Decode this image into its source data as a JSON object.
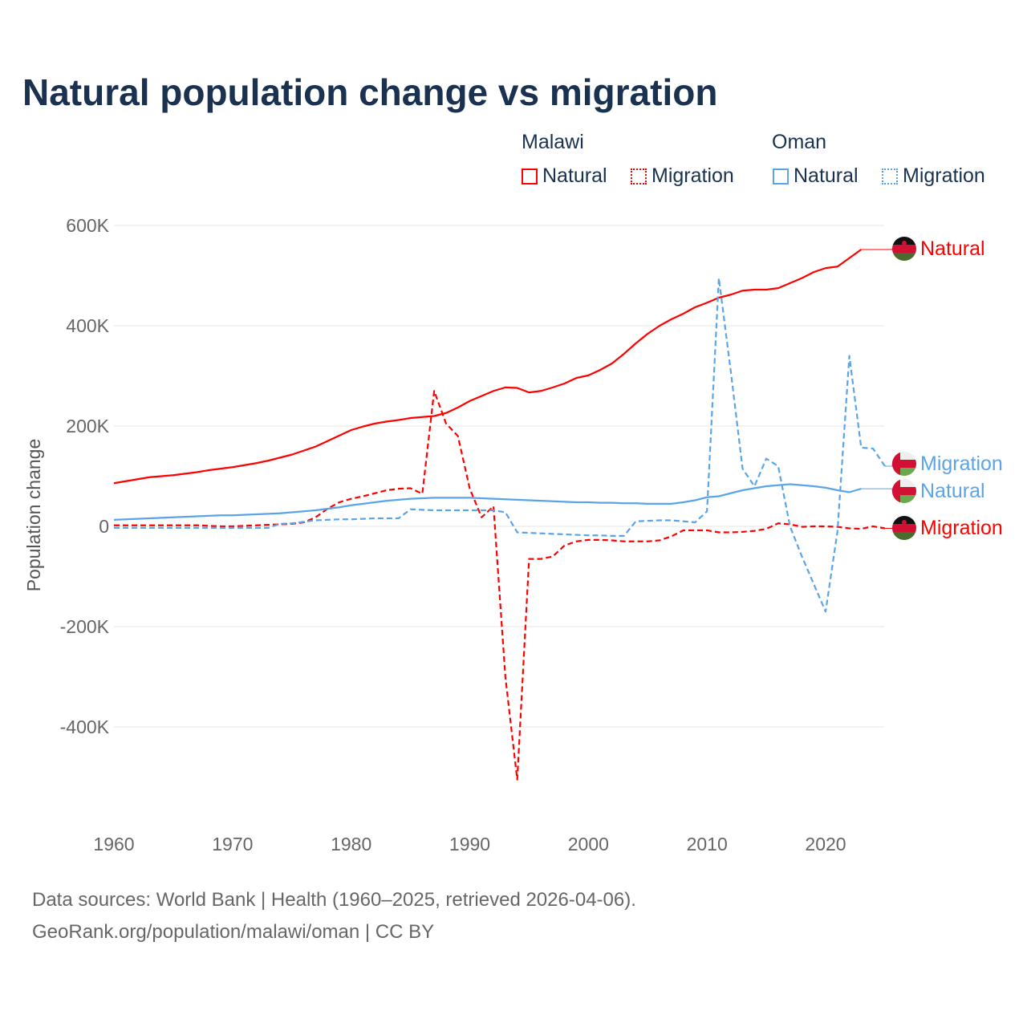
{
  "chart_data": {
    "type": "line",
    "title": "Natural population change vs migration",
    "ylabel": "Population change",
    "xlabel": "",
    "xlim": [
      1960,
      2025
    ],
    "ylim": [
      -500000,
      600000
    ],
    "x_ticks": [
      1960,
      1970,
      1980,
      1990,
      2000,
      2010,
      2020
    ],
    "x_tick_labels": [
      "1960",
      "1970",
      "1980",
      "1990",
      "2000",
      "2010",
      "2020"
    ],
    "y_ticks": [
      600000,
      400000,
      200000,
      0,
      -200000,
      -400000
    ],
    "y_tick_labels": [
      "600K",
      "400K",
      "200K",
      "0",
      "-200K",
      "-400K"
    ],
    "grid": true,
    "legend": {
      "placement": "top-right",
      "groups": [
        {
          "country": "Malawi",
          "items": [
            "Natural",
            "Migration"
          ]
        },
        {
          "country": "Oman",
          "items": [
            "Natural",
            "Migration"
          ]
        }
      ]
    },
    "colors": {
      "Malawi": "#ff0000",
      "Oman": "#5ba4e8"
    },
    "series": [
      {
        "name": "Malawi Natural",
        "country": "Malawi",
        "kind": "Natural",
        "end_label": "Natural",
        "dashed": false,
        "start": 1960,
        "values": [
          86,
          90,
          94,
          98,
          100,
          102,
          105,
          108,
          112,
          115,
          118,
          122,
          126,
          131,
          137,
          143,
          151,
          159,
          170,
          181,
          192,
          199,
          205,
          209,
          212,
          216,
          218,
          220,
          226,
          237,
          250,
          260,
          270,
          277,
          276,
          267,
          270,
          277,
          285,
          296,
          301,
          312,
          325,
          344,
          365,
          384,
          400,
          413,
          424,
          437,
          446,
          456,
          462,
          470,
          472,
          472,
          475,
          485,
          495,
          507,
          515,
          518,
          535,
          552
        ]
      },
      {
        "name": "Malawi Migration",
        "country": "Malawi",
        "kind": "Migration",
        "end_label": "Migration",
        "dashed": true,
        "start": 1960,
        "values": [
          2,
          2,
          2,
          2,
          2,
          2,
          2,
          2,
          1,
          0,
          0,
          1,
          2,
          3,
          4,
          5,
          8,
          18,
          35,
          48,
          55,
          60,
          66,
          72,
          75,
          76,
          65,
          270,
          205,
          180,
          75,
          18,
          40,
          -300,
          -505,
          -65,
          -65,
          -60,
          -38,
          -30,
          -27,
          -27,
          -28,
          -30,
          -30,
          -30,
          -28,
          -20,
          -8,
          -8,
          -8,
          -12,
          -12,
          -11,
          -9,
          -5,
          6,
          4,
          -1,
          0,
          0,
          -1,
          -4,
          -5,
          0,
          -4
        ]
      },
      {
        "name": "Oman Natural",
        "country": "Oman",
        "kind": "Natural",
        "end_label": "Natural",
        "dashed": false,
        "start": 1960,
        "values": [
          13,
          14,
          15,
          16,
          17,
          18,
          19,
          20,
          21,
          22,
          22,
          23,
          24,
          25,
          26,
          28,
          30,
          32,
          35,
          38,
          42,
          45,
          48,
          51,
          53,
          55,
          56,
          57,
          57,
          57,
          57,
          56,
          55,
          54,
          53,
          52,
          51,
          50,
          49,
          48,
          48,
          47,
          47,
          46,
          46,
          45,
          45,
          45,
          48,
          52,
          58,
          60,
          66,
          72,
          76,
          80,
          82,
          84,
          82,
          80,
          77,
          72,
          68,
          75
        ]
      },
      {
        "name": "Oman Migration",
        "country": "Oman",
        "kind": "Migration",
        "end_label": "Migration",
        "dashed": true,
        "start": 1960,
        "values": [
          -3,
          -3,
          -3,
          -3,
          -3,
          -3,
          -3,
          -3,
          -3,
          -3,
          -3,
          -3,
          -3,
          -3,
          5,
          6,
          9,
          12,
          13,
          14,
          14,
          15,
          16,
          16,
          16,
          34,
          33,
          32,
          32,
          32,
          32,
          32,
          32,
          28,
          -12,
          -13,
          -14,
          -15,
          -16,
          -17,
          -18,
          -18,
          -19,
          -19,
          10,
          11,
          12,
          12,
          10,
          8,
          30,
          495,
          310,
          115,
          80,
          135,
          120,
          0,
          -60,
          -115,
          -170,
          -10,
          340,
          157,
          155,
          120
        ]
      }
    ]
  },
  "legend_labels": {
    "malawi": "Malawi",
    "oman": "Oman",
    "natural": "Natural",
    "migration": "Migration"
  },
  "footer": {
    "line1": "Data sources: World Bank | Health (1960–2025, retrieved 2026-04-06).",
    "line2": "GeoRank.org/population/malawi/oman | CC BY"
  }
}
